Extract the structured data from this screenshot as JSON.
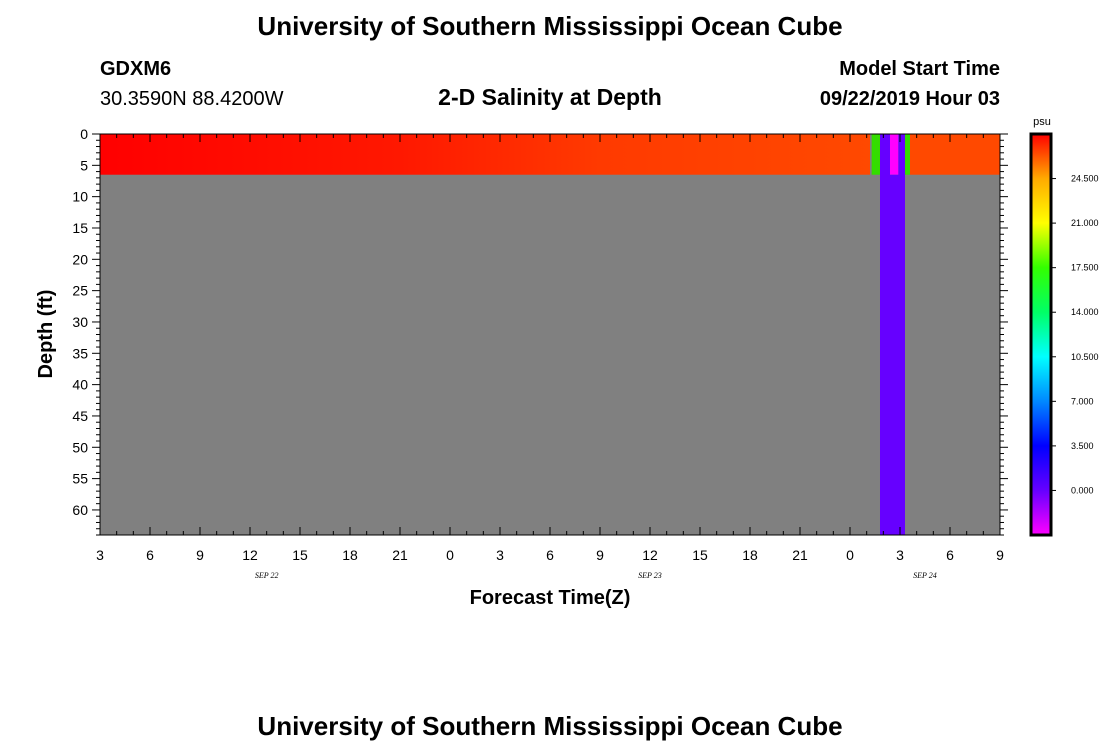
{
  "page": {
    "title_top": "University of Southern Mississippi Ocean Cube",
    "title_bottom": "University of Southern Mississippi Ocean Cube",
    "station_id": "GDXM6",
    "station_coords": "30.3590N 88.4200W",
    "plot_title": "2-D Salinity at Depth",
    "model_start_label": "Model Start Time",
    "model_start_value": "09/22/2019 Hour 03"
  },
  "chart_data": {
    "type": "heatmap",
    "title": "2-D Salinity at Depth",
    "xlabel": "Forecast Time(Z)",
    "ylabel": "Depth (ft)",
    "x_tick_labels": [
      "3",
      "6",
      "9",
      "12",
      "15",
      "18",
      "21",
      "0",
      "3",
      "6",
      "9",
      "12",
      "15",
      "18",
      "21",
      "0",
      "3",
      "6",
      "9"
    ],
    "x_hours_from_start": [
      0,
      3,
      6,
      9,
      12,
      15,
      18,
      21,
      24,
      27,
      30,
      33,
      36,
      39,
      42,
      45,
      48,
      51,
      54
    ],
    "date_labels": [
      {
        "text": "SEP 22",
        "hour": 10
      },
      {
        "text": "SEP 23",
        "hour": 33
      },
      {
        "text": "SEP 24",
        "hour": 49.5
      }
    ],
    "y_tick_labels": [
      "0",
      "5",
      "10",
      "15",
      "20",
      "25",
      "30",
      "35",
      "40",
      "45",
      "50",
      "55",
      "60"
    ],
    "y_ticks": [
      0,
      5,
      10,
      15,
      20,
      25,
      30,
      35,
      40,
      45,
      50,
      55,
      60
    ],
    "xlim": [
      0,
      54
    ],
    "ylim": [
      0,
      64
    ],
    "no_data_color": "#808080",
    "surface_layer_depth": [
      0,
      6.5
    ],
    "surface_salinity": [
      {
        "hour": 0,
        "value": 28
      },
      {
        "hour": 18,
        "value": 27.5
      },
      {
        "hour": 30,
        "value": 26.8
      },
      {
        "hour": 46.2,
        "value": 26.5
      }
    ],
    "surface_salinity_after": {
      "from_hour": 48.6,
      "to_hour": 54,
      "value": 26.5
    },
    "anomalies": [
      {
        "from_hour": 46.3,
        "to_hour": 46.8,
        "depth": [
          0,
          6.5
        ],
        "color": "#33dd00"
      },
      {
        "from_hour": 46.8,
        "to_hour": 47.4,
        "depth": [
          0,
          64
        ],
        "color": "#6600ff"
      },
      {
        "from_hour": 47.4,
        "to_hour": 47.9,
        "depth": [
          0,
          6.5
        ],
        "color": "#ff00ff"
      },
      {
        "from_hour": 47.9,
        "to_hour": 48.3,
        "depth": [
          0,
          64
        ],
        "color": "#6600ff"
      },
      {
        "from_hour": 48.3,
        "to_hour": 48.6,
        "depth": [
          0,
          6.5
        ],
        "color": "#33dd00"
      },
      {
        "from_hour": 48.3,
        "to_hour": 48.3,
        "depth": [
          6.5,
          64
        ],
        "color": "#6600ff"
      }
    ],
    "colorbar": {
      "unit": "psu",
      "labels": [
        "24.500",
        "21.000",
        "17.500",
        "14.000",
        "10.500",
        "7.000",
        "3.500",
        "0.000"
      ],
      "values": [
        24.5,
        21.0,
        17.5,
        14.0,
        10.5,
        7.0,
        3.5,
        0.0
      ],
      "range": [
        -3.5,
        28.0
      ],
      "colors": [
        {
          "value": -3.5,
          "color": "#ff00ff"
        },
        {
          "value": 0.0,
          "color": "#6600ff"
        },
        {
          "value": 3.5,
          "color": "#0000ff"
        },
        {
          "value": 7.0,
          "color": "#0088ff"
        },
        {
          "value": 10.5,
          "color": "#00ffff"
        },
        {
          "value": 14.0,
          "color": "#00ff66"
        },
        {
          "value": 17.5,
          "color": "#33ff00"
        },
        {
          "value": 21.0,
          "color": "#ffff00"
        },
        {
          "value": 24.5,
          "color": "#ffaa00"
        },
        {
          "value": 28.0,
          "color": "#ff0000"
        }
      ]
    }
  }
}
